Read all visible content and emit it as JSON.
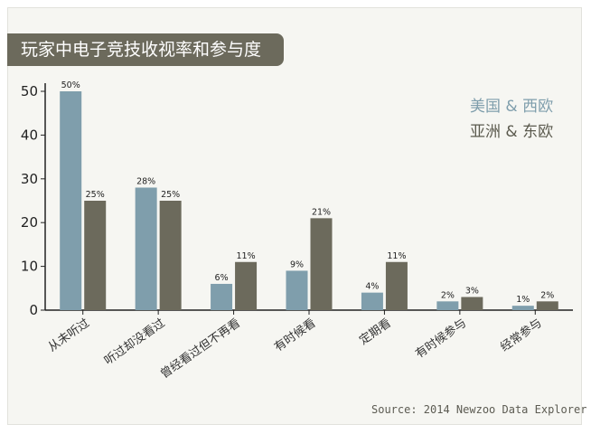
{
  "title": "玩家中电子竞技收视率和参与度",
  "source": "Source: 2014 Newzoo Data Explorer",
  "chart_data": {
    "type": "bar",
    "title": "玩家中电子竞技收视率和参与度",
    "categories": [
      "从未听过",
      "听过却没看过",
      "曾经看过但不再看",
      "有时候看",
      "定期看",
      "有时候参与",
      "经常参与"
    ],
    "series": [
      {
        "name": "美国 & 西欧",
        "values": [
          50,
          28,
          6,
          9,
          4,
          2,
          1
        ],
        "labels": [
          "50%",
          "28%",
          "6%",
          "9%",
          "4%",
          "2%",
          "1%"
        ],
        "color": "#7f9eac"
      },
      {
        "name": "亚洲 & 东欧",
        "values": [
          25,
          25,
          11,
          21,
          11,
          3,
          2
        ],
        "labels": [
          "25%",
          "25%",
          "11%",
          "21%",
          "11%",
          "3%",
          "2%"
        ],
        "color": "#6c6a5c"
      }
    ],
    "yticks": [
      0,
      10,
      20,
      30,
      40,
      50
    ],
    "ylim": [
      0,
      50
    ],
    "grid": false,
    "legend_position": "top-right"
  }
}
